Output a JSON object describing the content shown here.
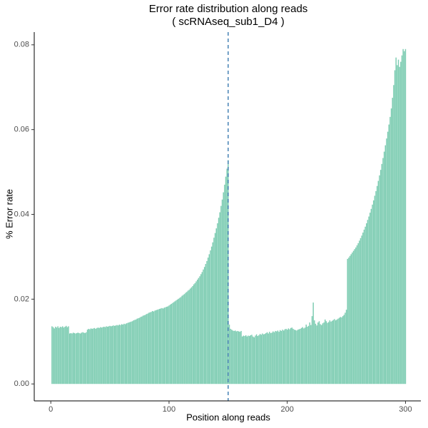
{
  "chart_data": {
    "type": "bar",
    "title": "Error rate distribution along reads",
    "subtitle": "( scRNAseq_sub1_D4 )",
    "xlabel": "Position along reads",
    "ylabel": "% Error rate",
    "color": "#7fcdb3",
    "vline": {
      "value": 150,
      "color": "#4682b4"
    },
    "xlim": [
      -14,
      313
    ],
    "ylim": [
      -0.004,
      0.083
    ],
    "xticks": [
      0,
      100,
      200,
      300
    ],
    "yticks": [
      {
        "value": 0,
        "label": "0.00"
      },
      {
        "value": 0.02,
        "label": "0.02"
      },
      {
        "value": 0.04,
        "label": "0.04"
      },
      {
        "value": 0.06,
        "label": "0.06"
      },
      {
        "value": 0.08,
        "label": "0.08"
      }
    ],
    "x": [
      1,
      2,
      3,
      4,
      5,
      6,
      7,
      8,
      9,
      10,
      11,
      12,
      13,
      14,
      15,
      16,
      17,
      18,
      19,
      20,
      21,
      22,
      23,
      24,
      25,
      26,
      27,
      28,
      29,
      30,
      31,
      32,
      33,
      34,
      35,
      36,
      37,
      38,
      39,
      40,
      41,
      42,
      43,
      44,
      45,
      46,
      47,
      48,
      49,
      50,
      51,
      52,
      53,
      54,
      55,
      56,
      57,
      58,
      59,
      60,
      61,
      62,
      63,
      64,
      65,
      66,
      67,
      68,
      69,
      70,
      71,
      72,
      73,
      74,
      75,
      76,
      77,
      78,
      79,
      80,
      81,
      82,
      83,
      84,
      85,
      86,
      87,
      88,
      89,
      90,
      91,
      92,
      93,
      94,
      95,
      96,
      97,
      98,
      99,
      100,
      101,
      102,
      103,
      104,
      105,
      106,
      107,
      108,
      109,
      110,
      111,
      112,
      113,
      114,
      115,
      116,
      117,
      118,
      119,
      120,
      121,
      122,
      123,
      124,
      125,
      126,
      127,
      128,
      129,
      130,
      131,
      132,
      133,
      134,
      135,
      136,
      137,
      138,
      139,
      140,
      141,
      142,
      143,
      144,
      145,
      146,
      147,
      148,
      149,
      150,
      151,
      152,
      153,
      154,
      155,
      156,
      157,
      158,
      159,
      160,
      161,
      162,
      163,
      164,
      165,
      166,
      167,
      168,
      169,
      170,
      171,
      172,
      173,
      174,
      175,
      176,
      177,
      178,
      179,
      180,
      181,
      182,
      183,
      184,
      185,
      186,
      187,
      188,
      189,
      190,
      191,
      192,
      193,
      194,
      195,
      196,
      197,
      198,
      199,
      200,
      201,
      202,
      203,
      204,
      205,
      206,
      207,
      208,
      209,
      210,
      211,
      212,
      213,
      214,
      215,
      216,
      217,
      218,
      219,
      220,
      221,
      222,
      223,
      224,
      225,
      226,
      227,
      228,
      229,
      230,
      231,
      232,
      233,
      234,
      235,
      236,
      237,
      238,
      239,
      240,
      241,
      242,
      243,
      244,
      245,
      246,
      247,
      248,
      249,
      250,
      251,
      252,
      253,
      254,
      255,
      256,
      257,
      258,
      259,
      260,
      261,
      262,
      263,
      264,
      265,
      266,
      267,
      268,
      269,
      270,
      271,
      272,
      273,
      274,
      275,
      276,
      277,
      278,
      279,
      280,
      281,
      282,
      283,
      284,
      285,
      286,
      287,
      288,
      289,
      290,
      291,
      292,
      293,
      294,
      295,
      296,
      297,
      298,
      299,
      300
    ],
    "values": [
      0.0136,
      0.0134,
      0.0131,
      0.0135,
      0.0133,
      0.0136,
      0.0132,
      0.0135,
      0.0134,
      0.0136,
      0.0133,
      0.0135,
      0.0137,
      0.0134,
      0.0136,
      0.0119,
      0.012,
      0.0119,
      0.0121,
      0.012,
      0.0119,
      0.012,
      0.0121,
      0.012,
      0.0119,
      0.0121,
      0.0122,
      0.0121,
      0.012,
      0.0122,
      0.0128,
      0.013,
      0.0129,
      0.0131,
      0.013,
      0.0131,
      0.0132,
      0.013,
      0.0132,
      0.0133,
      0.0132,
      0.0134,
      0.0133,
      0.0134,
      0.0135,
      0.0134,
      0.0136,
      0.0135,
      0.0136,
      0.0137,
      0.0136,
      0.0137,
      0.0138,
      0.0137,
      0.0138,
      0.0139,
      0.0138,
      0.014,
      0.0139,
      0.0141,
      0.014,
      0.0142,
      0.0141,
      0.0143,
      0.0144,
      0.0145,
      0.0146,
      0.0147,
      0.0148,
      0.015,
      0.0151,
      0.0152,
      0.0154,
      0.0155,
      0.0156,
      0.0158,
      0.0159,
      0.0161,
      0.0162,
      0.0163,
      0.0165,
      0.0166,
      0.0168,
      0.0169,
      0.017,
      0.0172,
      0.0171,
      0.0173,
      0.0174,
      0.0175,
      0.0176,
      0.0177,
      0.0178,
      0.0179,
      0.0178,
      0.018,
      0.0181,
      0.0182,
      0.0183,
      0.0185,
      0.0187,
      0.0189,
      0.0191,
      0.0193,
      0.0195,
      0.0197,
      0.0199,
      0.0201,
      0.0203,
      0.0205,
      0.0208,
      0.021,
      0.0212,
      0.0215,
      0.0217,
      0.022,
      0.0222,
      0.0225,
      0.0228,
      0.0231,
      0.0235,
      0.0238,
      0.0242,
      0.0246,
      0.025,
      0.0254,
      0.0259,
      0.0264,
      0.027,
      0.0276,
      0.0283,
      0.029,
      0.0298,
      0.0306,
      0.0315,
      0.0324,
      0.0334,
      0.0345,
      0.0356,
      0.0367,
      0.0379,
      0.0392,
      0.0405,
      0.042,
      0.0435,
      0.0452,
      0.047,
      0.0489,
      0.0508,
      0.0528,
      0.014,
      0.013,
      0.0128,
      0.0126,
      0.0125,
      0.0126,
      0.0124,
      0.0125,
      0.0124,
      0.0123,
      0.0125,
      0.0112,
      0.0114,
      0.0113,
      0.0115,
      0.0112,
      0.0114,
      0.0113,
      0.0115,
      0.0116,
      0.0112,
      0.011,
      0.0114,
      0.0117,
      0.0113,
      0.0115,
      0.0118,
      0.0116,
      0.0119,
      0.0117,
      0.0118,
      0.012,
      0.0122,
      0.0119,
      0.0123,
      0.012,
      0.0121,
      0.0124,
      0.0122,
      0.0125,
      0.0124,
      0.0126,
      0.0123,
      0.0127,
      0.0125,
      0.0128,
      0.0126,
      0.0129,
      0.013,
      0.0128,
      0.0131,
      0.0129,
      0.0132,
      0.0133,
      0.013,
      0.0128,
      0.0127,
      0.0126,
      0.0128,
      0.0129,
      0.013,
      0.0132,
      0.0134,
      0.0131,
      0.0133,
      0.014,
      0.0135,
      0.0137,
      0.0145,
      0.0139,
      0.016,
      0.0192,
      0.015,
      0.0142,
      0.0138,
      0.0145,
      0.0148,
      0.0141,
      0.0139,
      0.0143,
      0.0145,
      0.0152,
      0.0148,
      0.0144,
      0.0146,
      0.015,
      0.0147,
      0.0149,
      0.0151,
      0.0153,
      0.015,
      0.0152,
      0.0154,
      0.0156,
      0.0158,
      0.0157,
      0.016,
      0.0163,
      0.0168,
      0.0175,
      0.0295,
      0.0298,
      0.0302,
      0.0306,
      0.031,
      0.0314,
      0.0318,
      0.0322,
      0.0327,
      0.0332,
      0.0338,
      0.0344,
      0.035,
      0.0357,
      0.0364,
      0.0371,
      0.0379,
      0.0387,
      0.0395,
      0.0404,
      0.0413,
      0.0423,
      0.0433,
      0.0444,
      0.0455,
      0.0467,
      0.0479,
      0.0492,
      0.0505,
      0.0519,
      0.0533,
      0.0548,
      0.0563,
      0.0579,
      0.0595,
      0.0612,
      0.063,
      0.065,
      0.0675,
      0.0705,
      0.074,
      0.077,
      0.0752,
      0.0765,
      0.0748,
      0.076,
      0.0775,
      0.079,
      0.0785,
      0.079
    ]
  }
}
